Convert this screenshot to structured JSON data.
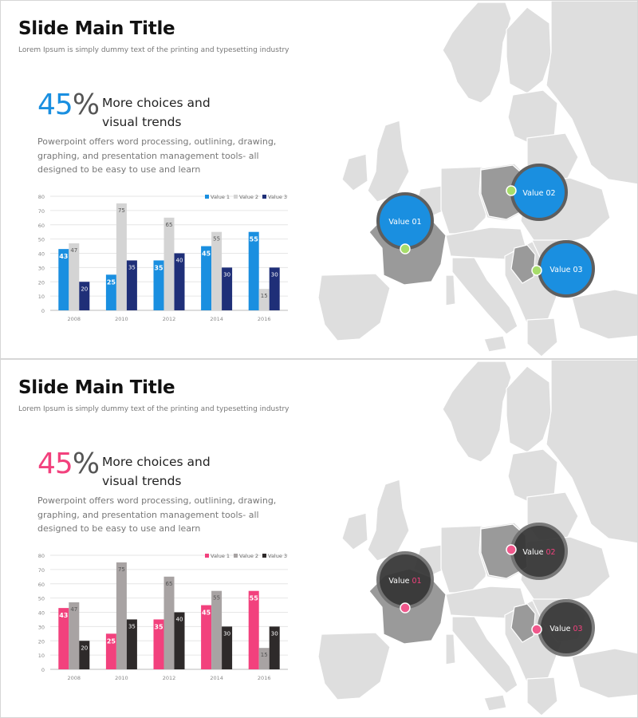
{
  "slides": [
    {
      "theme": {
        "primary": "#1a8fe0",
        "secondary": "#d4d4d4",
        "tertiary": "#1f2f78",
        "callout_fill": "#1a8fe0",
        "callout_ring": "#5e5e5e",
        "marker": "#a7dd6b",
        "callout_label_color": "#ffffff",
        "callout_value_color": "#ffffff"
      },
      "title": "Slide Main Title",
      "subtitle": "Lorem Ipsum is simply dummy text of the printing and typesetting industry",
      "percent_value": "45",
      "percent_sign": "%",
      "headline_line1": "More choices and",
      "headline_line2": "visual trends",
      "body": "Powerpoint offers word processing, outlining, drawing, graphing, and presentation management tools- all designed to be easy to use and learn",
      "callouts": [
        {
          "word": "Value",
          "num": "01"
        },
        {
          "word": "Value",
          "num": "02"
        },
        {
          "word": "Value",
          "num": "03"
        }
      ]
    },
    {
      "theme": {
        "primary": "#f2417d",
        "secondary": "#a8a3a3",
        "tertiary": "#2e2a2a",
        "callout_fill": "#333333",
        "callout_ring": "#707070",
        "marker": "#f0588c",
        "callout_label_color": "#ffffff",
        "callout_value_color": "#f2417d"
      },
      "title": "Slide Main Title",
      "subtitle": "Lorem Ipsum is simply dummy text of the printing and typesetting industry",
      "percent_value": "45",
      "percent_sign": "%",
      "headline_line1": "More choices and",
      "headline_line2": "visual trends",
      "body": "Powerpoint offers word processing, outlining, drawing, graphing, and presentation management tools- all designed to be easy to use and learn",
      "callouts": [
        {
          "word": "Value",
          "num": "01"
        },
        {
          "word": "Value",
          "num": "02"
        },
        {
          "word": "Value",
          "num": "03"
        }
      ]
    }
  ],
  "chart_data": [
    {
      "type": "bar",
      "categories": [
        "2008",
        "2010",
        "2012",
        "2014",
        "2016"
      ],
      "series": [
        {
          "name": "Value 1",
          "values": [
            43,
            25,
            35,
            45,
            55
          ]
        },
        {
          "name": "Value 2",
          "values": [
            47,
            75,
            65,
            55,
            15
          ]
        },
        {
          "name": "Value 3",
          "values": [
            20,
            35,
            40,
            30,
            30
          ]
        }
      ],
      "yticks": [
        "0",
        "10",
        "20",
        "30",
        "40",
        "50",
        "60",
        "70",
        "80"
      ],
      "ylim": [
        0,
        80
      ],
      "grid": true,
      "legend": "top-right"
    },
    {
      "type": "bar",
      "categories": [
        "2008",
        "2010",
        "2012",
        "2014",
        "2016"
      ],
      "series": [
        {
          "name": "Value 1",
          "values": [
            43,
            25,
            35,
            45,
            55
          ]
        },
        {
          "name": "Value 2",
          "values": [
            47,
            75,
            65,
            55,
            15
          ]
        },
        {
          "name": "Value 3",
          "values": [
            20,
            35,
            40,
            30,
            30
          ]
        }
      ],
      "yticks": [
        "0",
        "10",
        "20",
        "30",
        "40",
        "50",
        "60",
        "70",
        "80"
      ],
      "ylim": [
        0,
        80
      ],
      "grid": true,
      "legend": "top-right"
    }
  ]
}
